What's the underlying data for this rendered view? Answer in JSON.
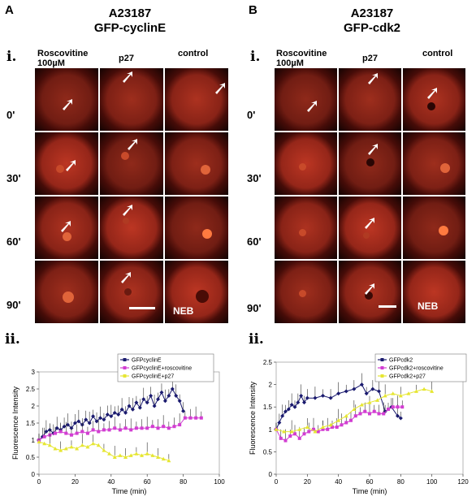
{
  "panels": [
    {
      "letter": "A",
      "title1": "A23187",
      "title2": "GFP-cyclinE",
      "sub_i": "i.",
      "sub_ii": "ii.",
      "col1_line1": "Roscovitine",
      "col1_line2": "100µM",
      "col2": "p27",
      "col3": "control",
      "rows": [
        "0'",
        "30'",
        "60'",
        "90'"
      ],
      "neb": "NEB"
    },
    {
      "letter": "B",
      "title1": "A23187",
      "title2": "GFP-cdk2",
      "sub_i": "i.",
      "sub_ii": "ii.",
      "col1_line1": "Roscovitine",
      "col1_line2": "100µM",
      "col2": "p27",
      "col3": "control",
      "rows": [
        "0'",
        "30'",
        "60'",
        "90'"
      ],
      "neb": "NEB"
    }
  ],
  "chart_data": [
    {
      "type": "line",
      "xlabel": "Time (min)",
      "ylabel": "Fluorescence Intensity",
      "xlim": [
        0,
        100
      ],
      "ylim": [
        0,
        3
      ],
      "xticks": [
        0,
        20,
        40,
        60,
        80,
        100
      ],
      "yticks": [
        0,
        0.5,
        1,
        1.5,
        2,
        2.5,
        3
      ],
      "ytick_labels": [
        "0",
        "0.5",
        "1",
        "1.5",
        "2",
        "2.5",
        "3"
      ],
      "legend_position": "top-right",
      "series": [
        {
          "name": "GFPcyclinE",
          "color": "#1a1a6e",
          "marker": "diamond",
          "x": [
            0,
            2,
            4,
            6,
            8,
            10,
            12,
            14,
            16,
            18,
            20,
            22,
            24,
            26,
            28,
            30,
            32,
            34,
            36,
            38,
            40,
            42,
            44,
            46,
            48,
            50,
            52,
            54,
            56,
            58,
            60,
            62,
            64,
            66,
            68,
            70,
            72,
            74,
            76,
            78,
            80
          ],
          "y": [
            1.0,
            1.1,
            1.25,
            1.3,
            1.2,
            1.35,
            1.3,
            1.4,
            1.45,
            1.35,
            1.5,
            1.55,
            1.45,
            1.6,
            1.5,
            1.7,
            1.55,
            1.65,
            1.6,
            1.75,
            1.7,
            1.8,
            1.75,
            1.9,
            1.8,
            2.0,
            1.9,
            2.1,
            1.95,
            2.2,
            2.1,
            2.3,
            2.0,
            2.2,
            2.4,
            2.15,
            2.3,
            2.5,
            2.3,
            2.15,
            1.85
          ]
        },
        {
          "name": "GFPcyclinE+roscovitine",
          "color": "#d23dd2",
          "marker": "square",
          "x": [
            0,
            3,
            6,
            9,
            12,
            15,
            18,
            21,
            24,
            27,
            30,
            33,
            36,
            39,
            42,
            45,
            48,
            51,
            54,
            57,
            60,
            63,
            66,
            69,
            72,
            75,
            78,
            81,
            84,
            87,
            90
          ],
          "y": [
            1.0,
            1.1,
            1.15,
            1.2,
            1.25,
            1.2,
            1.15,
            1.2,
            1.25,
            1.2,
            1.3,
            1.25,
            1.3,
            1.3,
            1.35,
            1.3,
            1.35,
            1.3,
            1.35,
            1.35,
            1.35,
            1.4,
            1.35,
            1.4,
            1.35,
            1.4,
            1.45,
            1.65,
            1.65,
            1.65,
            1.65
          ]
        },
        {
          "name": "GFPcyclinE+p27",
          "color": "#e6e632",
          "marker": "triangle",
          "x": [
            0,
            3,
            6,
            9,
            12,
            15,
            18,
            21,
            24,
            27,
            30,
            33,
            36,
            39,
            42,
            45,
            48,
            51,
            54,
            57,
            60,
            63,
            66,
            69,
            72
          ],
          "y": [
            0.95,
            0.9,
            0.85,
            0.75,
            0.7,
            0.75,
            0.8,
            0.75,
            0.85,
            0.8,
            0.9,
            0.85,
            0.7,
            0.6,
            0.5,
            0.55,
            0.5,
            0.55,
            0.6,
            0.55,
            0.6,
            0.55,
            0.5,
            0.45,
            0.4
          ]
        }
      ]
    },
    {
      "type": "line",
      "xlabel": "Time (min)",
      "ylabel": "Fluorescence Intensity",
      "xlim": [
        0,
        120
      ],
      "ylim": [
        0,
        2.5
      ],
      "xticks": [
        0,
        20,
        40,
        60,
        80,
        100,
        120
      ],
      "yticks": [
        0,
        0.5,
        1,
        1.5,
        2,
        2.5
      ],
      "ytick_labels": [
        "0",
        "0.5",
        "1",
        "1.5",
        "2",
        "2.5"
      ],
      "legend_position": "top-right",
      "series": [
        {
          "name": "GFPcdk2",
          "color": "#1a1a6e",
          "marker": "diamond",
          "x": [
            0,
            2,
            4,
            6,
            8,
            10,
            12,
            14,
            16,
            18,
            20,
            25,
            30,
            35,
            40,
            45,
            50,
            55,
            58,
            62,
            66,
            70,
            74,
            78,
            80
          ],
          "y": [
            1.0,
            1.15,
            1.3,
            1.4,
            1.45,
            1.55,
            1.5,
            1.6,
            1.75,
            1.6,
            1.7,
            1.7,
            1.75,
            1.7,
            1.8,
            1.85,
            1.9,
            2.0,
            1.8,
            1.9,
            1.85,
            1.4,
            1.5,
            1.3,
            1.25
          ]
        },
        {
          "name": "GFPcdk2+roscovitine",
          "color": "#d23dd2",
          "marker": "square",
          "x": [
            0,
            3,
            6,
            9,
            12,
            15,
            18,
            21,
            24,
            27,
            30,
            33,
            36,
            39,
            42,
            45,
            48,
            51,
            54,
            57,
            60,
            63,
            66,
            69,
            72,
            75,
            78,
            81
          ],
          "y": [
            1.0,
            0.8,
            0.75,
            0.85,
            0.9,
            0.8,
            0.9,
            0.95,
            1.0,
            0.95,
            1.0,
            1.0,
            1.05,
            1.05,
            1.1,
            1.15,
            1.2,
            1.3,
            1.35,
            1.4,
            1.35,
            1.4,
            1.35,
            1.35,
            1.45,
            1.5,
            1.5,
            1.5
          ]
        },
        {
          "name": "GFPcdk2+p27",
          "color": "#e6e632",
          "marker": "triangle",
          "x": [
            0,
            5,
            10,
            15,
            20,
            25,
            30,
            35,
            40,
            45,
            50,
            55,
            60,
            65,
            70,
            75,
            80,
            85,
            90,
            95,
            100
          ],
          "y": [
            1.0,
            0.95,
            0.95,
            1.0,
            1.05,
            0.95,
            1.05,
            1.1,
            1.2,
            1.3,
            1.45,
            1.55,
            1.6,
            1.65,
            1.75,
            1.8,
            1.75,
            1.8,
            1.85,
            1.9,
            1.85
          ]
        }
      ]
    }
  ]
}
